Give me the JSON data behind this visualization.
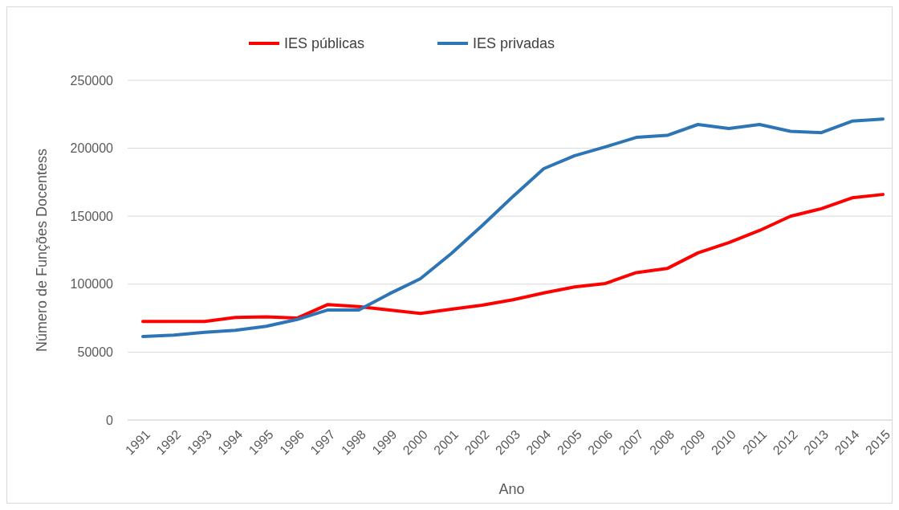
{
  "chart_data": {
    "type": "line",
    "xlabel": "Ano",
    "ylabel": "Número de Funções Docentess",
    "categories": [
      "1991",
      "1992",
      "1993",
      "1994",
      "1995",
      "1996",
      "1997",
      "1998",
      "1999",
      "2000",
      "2001",
      "2002",
      "2003",
      "2004",
      "2005",
      "2006",
      "2007",
      "2008",
      "2009",
      "2010",
      "2011",
      "2012",
      "2013",
      "2014",
      "2015"
    ],
    "series": [
      {
        "name": "IES públicas",
        "color": "#ff0000",
        "values": [
          72500,
          72500,
          72500,
          75500,
          76000,
          75000,
          85000,
          83500,
          81000,
          78500,
          81500,
          84500,
          88500,
          93500,
          98000,
          100500,
          108500,
          111500,
          123000,
          130500,
          139500,
          150000,
          155500,
          163500,
          166000
        ]
      },
      {
        "name": "IES privadas",
        "color": "#2e75b6",
        "values": [
          61500,
          62500,
          64500,
          66000,
          69000,
          74000,
          81000,
          81000,
          93000,
          104000,
          122500,
          143000,
          164500,
          185000,
          194500,
          201000,
          208000,
          209500,
          217500,
          214500,
          217500,
          212500,
          211500,
          220000,
          221500
        ]
      }
    ],
    "ylim": [
      0,
      250000
    ],
    "yticks": [
      0,
      50000,
      100000,
      150000,
      200000,
      250000
    ],
    "grid": "y",
    "legend": "top",
    "marker": "none",
    "line_style": "solid"
  }
}
